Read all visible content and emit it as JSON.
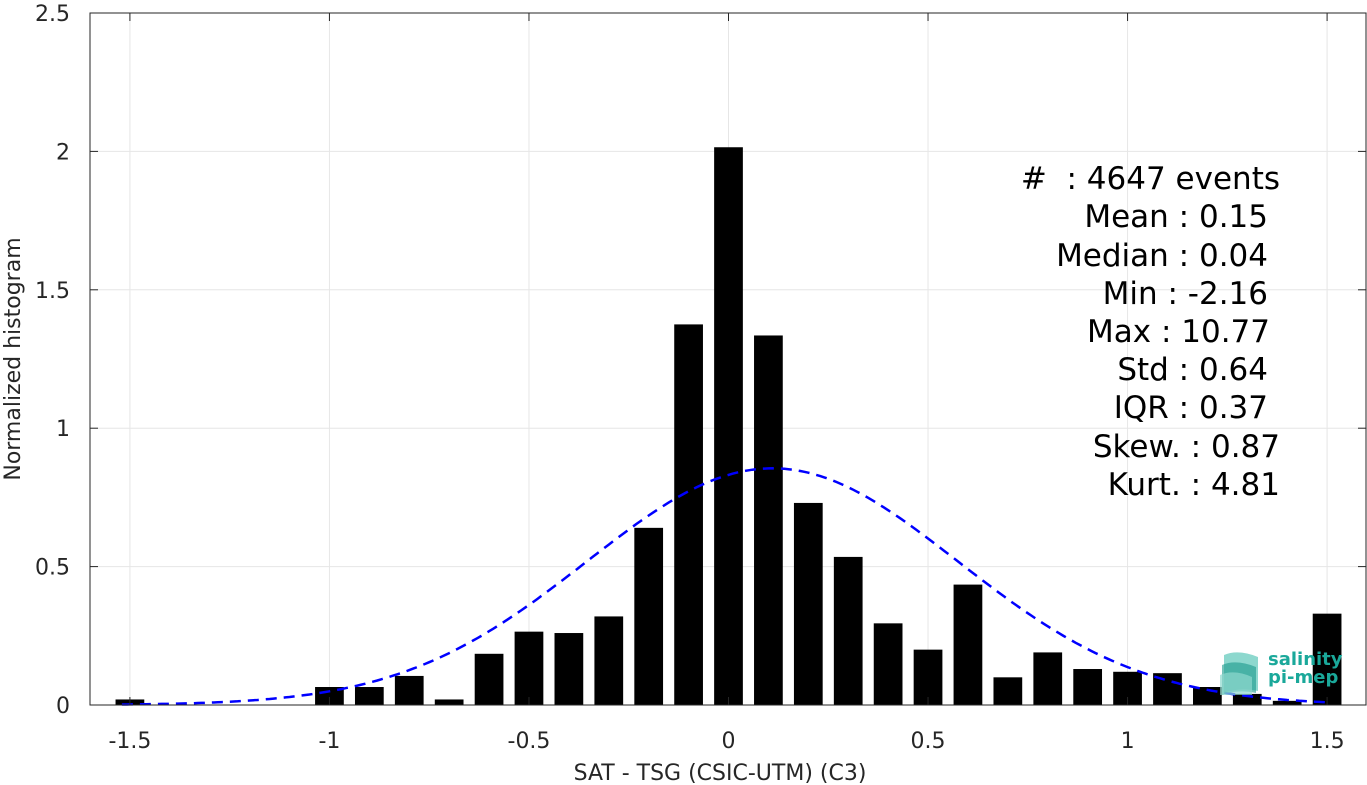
{
  "chart_data": {
    "type": "bar",
    "xlabel": "SAT - TSG (CSIC-UTM) (C3)",
    "ylabel": "Normalized histogram",
    "xlim": [
      -1.6,
      1.6
    ],
    "ylim": [
      0,
      2.5
    ],
    "xticks": [
      "-1.5",
      "-1",
      "-0.5",
      "0",
      "0.5",
      "1",
      "1.5"
    ],
    "yticks": [
      "0",
      "0.5",
      "1",
      "1.5",
      "2",
      "2.5"
    ],
    "grid": true,
    "bar_color": "#000000",
    "fit_color": "#0000ff",
    "bin_width": 0.1,
    "x": [
      -1.5,
      -1.4,
      -1.3,
      -1.2,
      -1.1,
      -1.0,
      -0.9,
      -0.8,
      -0.7,
      -0.6,
      -0.5,
      -0.4,
      -0.3,
      -0.2,
      -0.1,
      0.0,
      0.1,
      0.2,
      0.3,
      0.4,
      0.5,
      0.6,
      0.7,
      0.8,
      0.9,
      1.0,
      1.1,
      1.2,
      1.3,
      1.4,
      1.5
    ],
    "values": [
      0.02,
      0,
      0,
      0,
      0,
      0.065,
      0.065,
      0.105,
      0.02,
      0.185,
      0.265,
      0.26,
      0.32,
      0.64,
      1.375,
      2.015,
      1.335,
      0.73,
      0.535,
      0.295,
      0.2,
      0.435,
      0.1,
      0.19,
      0.13,
      0.12,
      0.115,
      0.065,
      0.04,
      0.015,
      0.33
    ],
    "fit": {
      "type": "normal",
      "style": "dashed",
      "mean": 0.11,
      "sigma": 0.465,
      "peak": 0.855
    }
  },
  "stats": {
    "count": "#  : 4647 events",
    "mean": "Mean : 0.15",
    "median": "Median : 0.04",
    "min": "Min : -2.16",
    "max": "Max : 10.77",
    "std": "Std : 0.64",
    "iqr": "IQR : 0.37",
    "skew": "Skew. : 0.87",
    "kurt": "Kurt. : 4.81"
  },
  "logo": {
    "line1": "salinity",
    "line2": "pi-mep",
    "color": "#1aa89a"
  }
}
